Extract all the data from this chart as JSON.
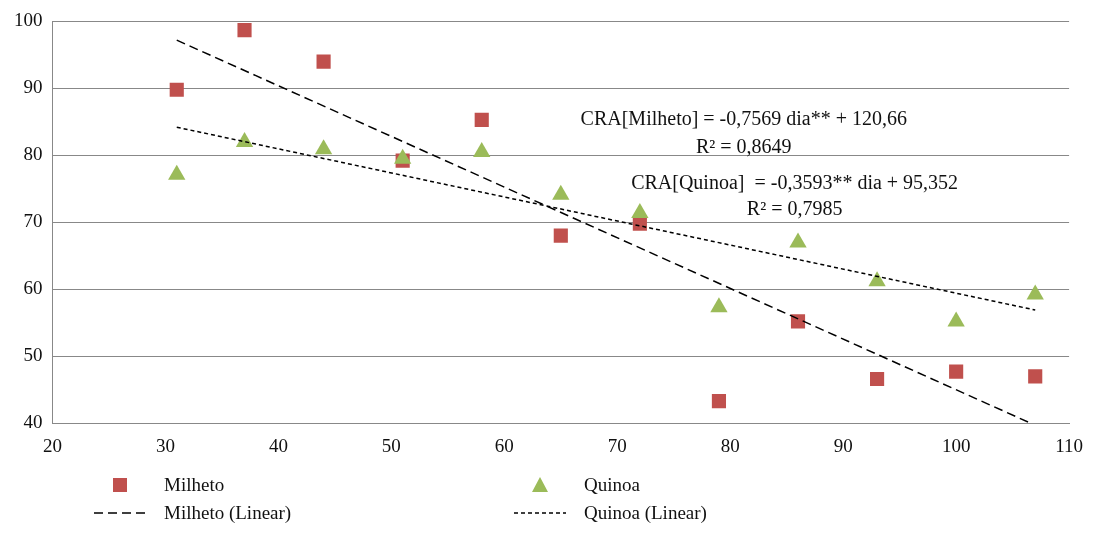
{
  "chart_data": {
    "type": "scatter",
    "x": [
      31,
      37,
      44,
      51,
      58,
      65,
      72,
      79,
      86,
      93,
      100,
      107
    ],
    "series": [
      {
        "name": "Milheto",
        "type": "scatter",
        "color": "#c0504d",
        "marker": "square",
        "values": [
          89.8,
          98.7,
          94,
          79.2,
          85.3,
          68,
          69.8,
          43.3,
          55.2,
          46.6,
          47.7,
          47
        ]
      },
      {
        "name": "Quinoa",
        "type": "scatter",
        "color": "#9bbb59",
        "marker": "triangle",
        "values": [
          77.1,
          82,
          80.9,
          79.5,
          80.5,
          74.1,
          71.4,
          57.3,
          67,
          61.2,
          55.2,
          59.2
        ]
      },
      {
        "name": "Milheto (Linear)",
        "type": "line",
        "color": "#000000",
        "line_style": "dashed",
        "marker": "none",
        "x": [
          31,
          106.6
        ],
        "values": [
          97.2,
          40
        ]
      },
      {
        "name": "Quinoa (Linear)",
        "type": "line",
        "color": "#000000",
        "line_style": "dotted",
        "marker": "none",
        "x": [
          31,
          107
        ],
        "values": [
          84.2,
          56.9
        ]
      }
    ],
    "xlim": [
      20,
      110
    ],
    "xticks": [
      20,
      30,
      40,
      50,
      60,
      70,
      80,
      90,
      100,
      110
    ],
    "ylim": [
      40,
      100
    ],
    "yticks": [
      40,
      50,
      60,
      70,
      80,
      90,
      100
    ],
    "grid": "y",
    "legend": "bottom",
    "annotations": [
      "CRA[Milheto] = -0,7569 dia** + 120,66",
      "R² = 0,8649",
      "CRA[Quinoa]  = -0,3593** dia + 95,352",
      "R² = 0,7985"
    ]
  }
}
